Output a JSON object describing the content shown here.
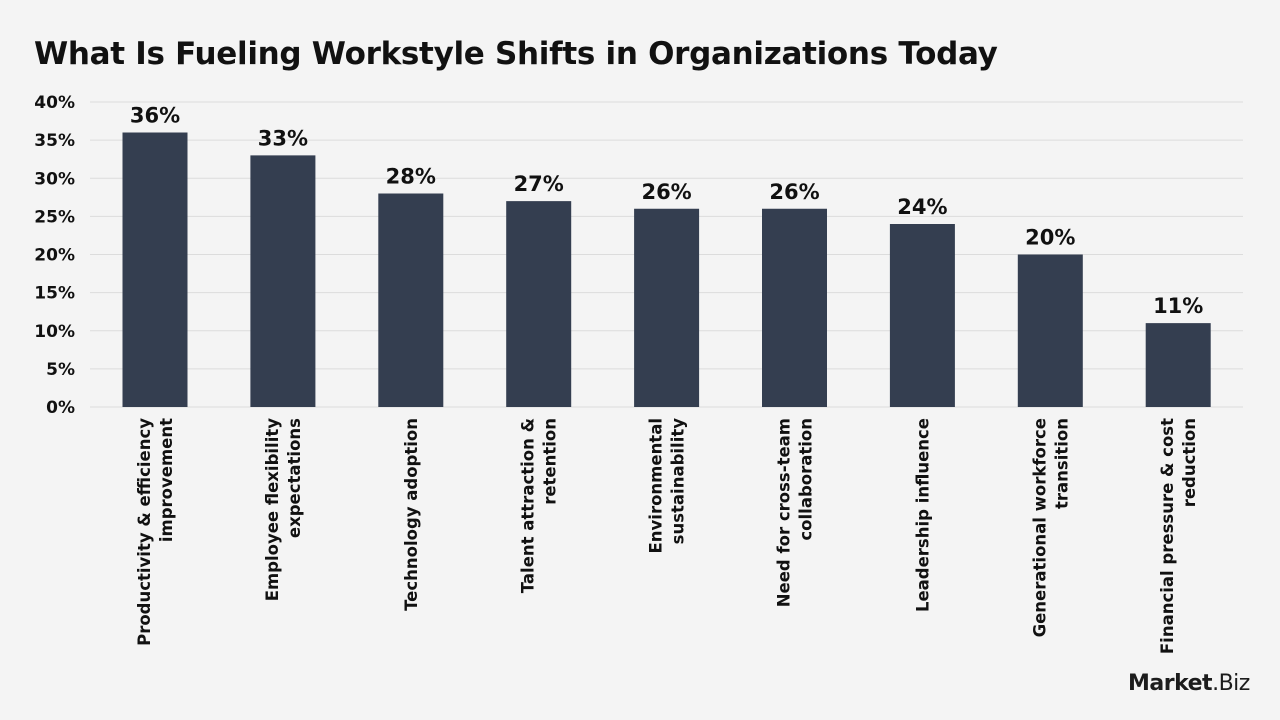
{
  "chart_data": {
    "type": "bar",
    "title": "What Is Fueling Workstyle Shifts in Organizations Today",
    "categories": [
      [
        "Productivity & efficiency",
        "improvement"
      ],
      [
        "Employee flexibility",
        "expectations"
      ],
      [
        "Technology adoption"
      ],
      [
        "Talent attraction &",
        "retention"
      ],
      [
        "Environmental",
        "sustainability"
      ],
      [
        "Need for cross-team",
        "collaboration"
      ],
      [
        "Leadership influence"
      ],
      [
        "Generational workforce",
        "transition"
      ],
      [
        "Financial pressure & cost",
        "reduction"
      ]
    ],
    "values": [
      36,
      33,
      28,
      27,
      26,
      26,
      24,
      20,
      11
    ],
    "value_labels": [
      "36%",
      "33%",
      "28%",
      "27%",
      "26%",
      "26%",
      "24%",
      "20%",
      "11%"
    ],
    "yticks": [
      0,
      5,
      10,
      15,
      20,
      25,
      30,
      35,
      40
    ],
    "ytick_labels": [
      "0%",
      "5%",
      "10%",
      "15%",
      "20%",
      "25%",
      "30%",
      "35%",
      "40%"
    ],
    "ylim": [
      0,
      40
    ],
    "grid": true,
    "legend": "none",
    "colors": {
      "bar": "#343e50",
      "grid": "#dcdcdc",
      "text": "#111111"
    }
  },
  "brand": {
    "name": "Market",
    "suffix": ".Biz"
  }
}
